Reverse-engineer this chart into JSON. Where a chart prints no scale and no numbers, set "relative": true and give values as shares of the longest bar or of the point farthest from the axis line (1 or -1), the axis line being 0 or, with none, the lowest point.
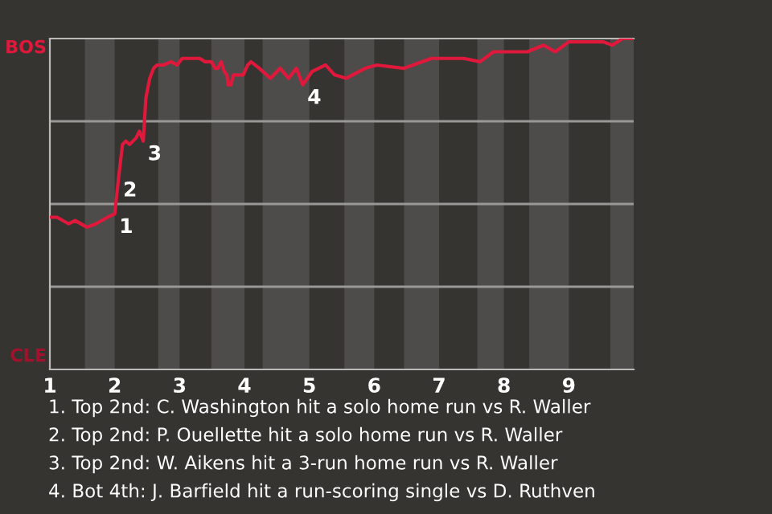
{
  "chart_data": {
    "type": "line",
    "x": [
      1.0,
      1.11,
      1.29,
      1.39,
      1.57,
      1.71,
      1.89,
      2.0,
      2.06,
      2.12,
      2.17,
      2.23,
      2.33,
      2.38,
      2.44,
      2.48,
      2.54,
      2.6,
      2.65,
      2.75,
      2.87,
      2.96,
      3.04,
      3.19,
      3.31,
      3.39,
      3.49,
      3.55,
      3.59,
      3.64,
      3.69,
      3.73,
      3.75,
      3.79,
      3.83,
      3.98,
      4.05,
      4.1,
      4.23,
      4.4,
      4.55,
      4.68,
      4.8,
      4.9,
      5.04,
      5.25,
      5.39,
      5.57,
      5.86,
      6.04,
      6.46,
      6.88,
      7.16,
      7.38,
      7.63,
      7.84,
      8.07,
      8.36,
      8.61,
      8.79,
      9.0,
      9.42,
      9.53,
      9.67,
      9.83,
      9.97
    ],
    "series": [
      {
        "color": "#e0193c",
        "values": [
          0.46,
          0.46,
          0.44,
          0.45,
          0.43,
          0.44,
          0.46,
          0.47,
          0.58,
          0.68,
          0.69,
          0.68,
          0.7,
          0.72,
          0.69,
          0.82,
          0.88,
          0.91,
          0.92,
          0.92,
          0.93,
          0.92,
          0.94,
          0.94,
          0.94,
          0.93,
          0.93,
          0.91,
          0.91,
          0.93,
          0.9,
          0.89,
          0.86,
          0.86,
          0.89,
          0.89,
          0.92,
          0.93,
          0.91,
          0.88,
          0.91,
          0.88,
          0.91,
          0.86,
          0.9,
          0.92,
          0.89,
          0.88,
          0.91,
          0.92,
          0.91,
          0.94,
          0.94,
          0.94,
          0.93,
          0.96,
          0.96,
          0.96,
          0.98,
          0.96,
          0.99,
          0.99,
          0.99,
          0.98,
          1.0,
          1.0
        ]
      }
    ],
    "xlim": [
      1,
      10
    ],
    "xticks": [
      1,
      2,
      3,
      4,
      5,
      6,
      7,
      8,
      9
    ],
    "relative": true,
    "ref_lines": [
      {
        "axis": "y",
        "value": 0.25,
        "color": "#9a9896"
      },
      {
        "axis": "y",
        "value": 0.5,
        "color": "#9a9896"
      },
      {
        "axis": "y",
        "value": 0.75,
        "color": "#9a9896"
      }
    ],
    "bands": [
      {
        "axis": "x",
        "from": 1.54,
        "to": 2,
        "color": "#4e4c4a"
      },
      {
        "axis": "x",
        "from": 2.67,
        "to": 3,
        "color": "#4e4c4a"
      },
      {
        "axis": "x",
        "from": 3.49,
        "to": 4,
        "color": "#4e4c4a"
      },
      {
        "axis": "x",
        "from": 4.28,
        "to": 5,
        "color": "#4e4c4a"
      },
      {
        "axis": "x",
        "from": 5.54,
        "to": 6,
        "color": "#4e4c4a"
      },
      {
        "axis": "x",
        "from": 6.46,
        "to": 7,
        "color": "#4e4c4a"
      },
      {
        "axis": "x",
        "from": 7.59,
        "to": 8,
        "color": "#4e4c4a"
      },
      {
        "axis": "x",
        "from": 8.39,
        "to": 9,
        "color": "#4e4c4a"
      },
      {
        "axis": "x",
        "from": 9.64,
        "to": 10,
        "color": "#4e4c4a"
      }
    ],
    "annotations": [
      "BOS",
      "CLE",
      {
        "text": "1",
        "x": 2.0,
        "y": 0.47
      },
      {
        "text": "2",
        "x": 2.06,
        "y": 0.58
      },
      {
        "text": "3",
        "x": 2.44,
        "y": 0.69
      },
      {
        "text": "4",
        "x": 4.9,
        "y": 0.86
      },
      "1. Top 2nd: C. Washington hit a solo home run vs R. Waller",
      "2. Top 2nd: P. Ouellette hit a solo home run vs R. Waller",
      "3. Top 2nd: W. Aikens hit a 3-run home run vs R. Waller",
      "4. Bot 4th: J. Barfield hit a run-scoring single vs D. Ruthven"
    ]
  }
}
